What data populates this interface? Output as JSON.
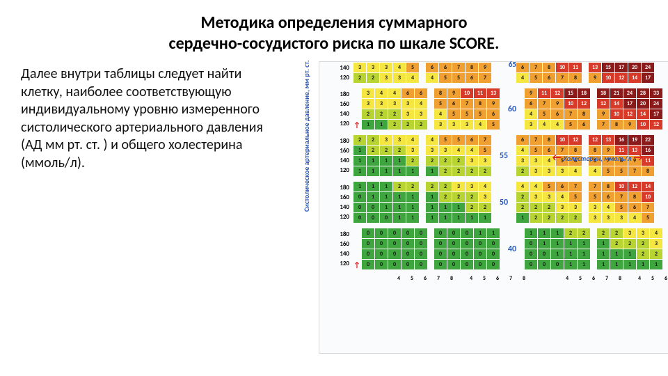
{
  "title_line1": "Методика определения суммарного",
  "title_line2": "сердечно-сосудистого риска по шкале SCORE.",
  "paragraph": "Далее внутри таблицы следует найти клетку, наиболее соответствующую индивидуальному уровню измеренного систолического артериального давления (АД мм рт. ст. ) и общего холестерина (ммоль/л).",
  "y_axis_label": "Систолическое артериальное давление, мм рт. ст.",
  "x_axis_label": "Холестерин, ммоль/л",
  "cholesterol_values": [
    "4",
    "5",
    "6",
    "7",
    "8"
  ],
  "bp_values_4row": [
    "180",
    "160",
    "140",
    "120"
  ],
  "bp_values_2row": [
    "140",
    "120"
  ],
  "colors": {
    "green": "#3fa63f",
    "yellowgreen": "#b8d432",
    "yellow": "#f5e642",
    "orange": "#f0a030",
    "red": "#d83a2a",
    "darkred": "#8b1a1a"
  },
  "chart": {
    "top_age_num": "65",
    "age_groups": [
      {
        "age": "",
        "rows": 2,
        "bp": [
          "140",
          "120"
        ],
        "blocks": [
          [
            [
              3,
              3,
              3,
              4,
              5
            ],
            [
              2,
              2,
              3,
              3,
              4
            ]
          ],
          [
            [
              6,
              6,
              7,
              8,
              9
            ],
            [
              4,
              5,
              5,
              6,
              7
            ]
          ],
          [
            [
              6,
              7,
              8,
              10,
              11
            ],
            [
              4,
              5,
              6,
              7,
              8
            ]
          ],
          [
            [
              13,
              15,
              17,
              20,
              24
            ],
            [
              9,
              10,
              12,
              14,
              17
            ]
          ]
        ]
      },
      {
        "age": "60",
        "rows": 4,
        "bp": [
          "180",
          "160",
          "140",
          "120"
        ],
        "blocks": [
          [
            [
              3,
              4,
              4,
              6,
              6
            ],
            [
              3,
              3,
              3,
              3,
              4
            ],
            [
              2,
              2,
              2,
              3,
              3
            ],
            [
              1,
              1,
              2,
              2,
              2
            ]
          ],
          [
            [
              8,
              9,
              10,
              11,
              13
            ],
            [
              5,
              6,
              7,
              8,
              9
            ],
            [
              4,
              5,
              5,
              5,
              6
            ],
            [
              3,
              3,
              3,
              4,
              5
            ]
          ],
          [
            [
              9,
              11,
              12,
              15,
              18
            ],
            [
              6,
              7,
              9,
              10,
              12
            ],
            [
              4,
              5,
              6,
              7,
              8
            ],
            [
              3,
              4,
              4,
              5,
              6
            ]
          ],
          [
            [
              18,
              21,
              24,
              28,
              33
            ],
            [
              12,
              14,
              17,
              20,
              24
            ],
            [
              9,
              10,
              12,
              14,
              17
            ],
            [
              7,
              8,
              9,
              10,
              12
            ]
          ]
        ]
      },
      {
        "age": "55",
        "rows": 4,
        "bp": [
          "180",
          "160",
          "140",
          "120"
        ],
        "blocks": [
          [
            [
              2,
              2,
              3,
              3,
              4
            ],
            [
              1,
              2,
              2,
              2,
              3
            ],
            [
              1,
              1,
              1,
              1,
              2
            ],
            [
              1,
              1,
              1,
              1,
              1
            ]
          ],
          [
            [
              4,
              5,
              5,
              6,
              7
            ],
            [
              3,
              3,
              4,
              4,
              5
            ],
            [
              2,
              2,
              2,
              3,
              3
            ],
            [
              1,
              2,
              2,
              2,
              2
            ]
          ],
          [
            [
              6,
              7,
              8,
              10,
              12
            ],
            [
              4,
              5,
              6,
              7,
              8
            ],
            [
              3,
              3,
              4,
              5,
              6
            ],
            [
              2,
              3,
              3,
              3,
              4
            ]
          ],
          [
            [
              12,
              13,
              16,
              19,
              22
            ],
            [
              8,
              9,
              11,
              13,
              16
            ],
            [
              6,
              7,
              8,
              9,
              11
            ],
            [
              4,
              5,
              5,
              7,
              8
            ]
          ]
        ]
      },
      {
        "age": "50",
        "rows": 4,
        "bp": [
          "180",
          "160",
          "140",
          "120"
        ],
        "blocks": [
          [
            [
              1,
              1,
              1,
              2,
              2
            ],
            [
              0,
              1,
              1,
              1,
              1
            ],
            [
              0,
              0,
              1,
              1,
              1
            ],
            [
              0,
              0,
              0,
              1,
              1
            ]
          ],
          [
            [
              2,
              2,
              3,
              3,
              4
            ],
            [
              1,
              2,
              2,
              2,
              3
            ],
            [
              1,
              1,
              1,
              2,
              2
            ],
            [
              1,
              1,
              1,
              1,
              1
            ]
          ],
          [
            [
              4,
              4,
              5,
              6,
              7
            ],
            [
              2,
              3,
              3,
              4,
              5
            ],
            [
              2,
              2,
              2,
              3,
              3
            ],
            [
              1,
              2,
              2,
              2,
              2
            ]
          ],
          [
            [
              7,
              8,
              10,
              12,
              14
            ],
            [
              5,
              6,
              7,
              8,
              10
            ],
            [
              3,
              4,
              5,
              6,
              7
            ],
            [
              3,
              3,
              3,
              4,
              5
            ]
          ]
        ]
      },
      {
        "age": "40",
        "rows": 4,
        "bp": [
          "180",
          "160",
          "140",
          "120"
        ],
        "blocks": [
          [
            [
              0,
              0,
              0,
              0,
              0
            ],
            [
              0,
              0,
              0,
              0,
              0
            ],
            [
              0,
              0,
              0,
              0,
              0
            ],
            [
              0,
              0,
              0,
              0,
              0
            ]
          ],
          [
            [
              0,
              0,
              0,
              1,
              1
            ],
            [
              0,
              0,
              0,
              0,
              0
            ],
            [
              0,
              0,
              0,
              0,
              0
            ],
            [
              0,
              0,
              0,
              0,
              0
            ]
          ],
          [
            [
              1,
              1,
              1,
              2,
              2
            ],
            [
              0,
              1,
              1,
              1,
              1
            ],
            [
              0,
              0,
              1,
              1,
              1
            ],
            [
              0,
              0,
              0,
              1,
              1
            ]
          ],
          [
            [
              2,
              2,
              3,
              3,
              4
            ],
            [
              1,
              2,
              2,
              2,
              3
            ],
            [
              1,
              1,
              1,
              2,
              2
            ],
            [
              1,
              1,
              1,
              1,
              1
            ]
          ]
        ]
      }
    ]
  }
}
